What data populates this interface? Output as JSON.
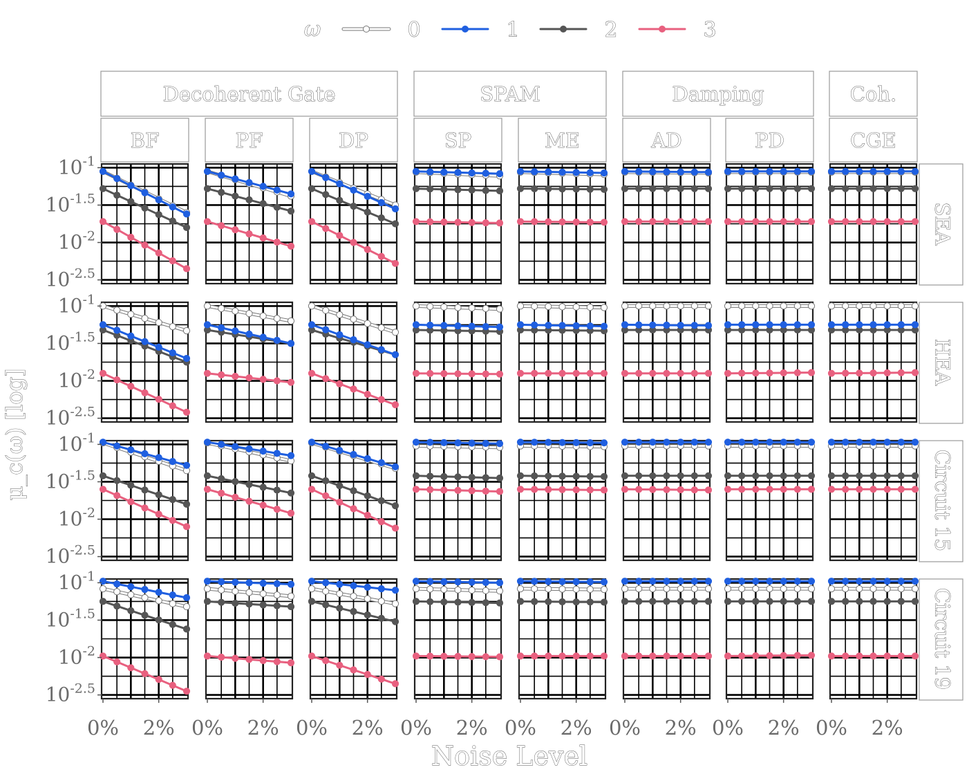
{
  "chart_data": {
    "type": "line",
    "xlabel": "Noise Level",
    "ylabel": "μ_c(ω) [log]",
    "legend": {
      "title": "ω",
      "position": "top",
      "entries": [
        "0",
        "1",
        "2",
        "3"
      ]
    },
    "colors": {
      "0": "#ffffff",
      "1": "#1f5fe0",
      "2": "#555555",
      "3": "#e8607f",
      "stroke0": "#777777"
    },
    "x": [
      0,
      0.5,
      1,
      1.5,
      2,
      2.5,
      3
    ],
    "x_unit": "%",
    "x_ticks": [
      "0%",
      "2%"
    ],
    "x_tick_values": [
      0,
      2
    ],
    "xlim": [
      0,
      3
    ],
    "y_ticks": [
      "10^-1",
      "10^-1.5",
      "10^-2",
      "10^-2.5"
    ],
    "y_tick_values": [
      -1,
      -1.5,
      -2,
      -2.5
    ],
    "ylim": [
      -2.55,
      -0.95
    ],
    "y_scale": "log10",
    "grid": true,
    "column_groups": [
      {
        "label": "Decoherent Gate",
        "columns": [
          "BF",
          "PF",
          "DP"
        ]
      },
      {
        "label": "SPAM",
        "columns": [
          "SP",
          "ME"
        ]
      },
      {
        "label": "Damping",
        "columns": [
          "AD",
          "PD"
        ]
      },
      {
        "label": "Coh.",
        "columns": [
          "CGE"
        ]
      }
    ],
    "columns": [
      "BF",
      "PF",
      "DP",
      "SP",
      "ME",
      "AD",
      "PD",
      "CGE"
    ],
    "rows": [
      "SEA",
      "HEA",
      "Circuit 15",
      "Circuit 19"
    ],
    "panels": [
      {
        "row": "SEA",
        "col": "BF",
        "series": [
          {
            "name": "0",
            "start": -1.05,
            "end": -1.6
          },
          {
            "name": "1",
            "start": -1.05,
            "end": -1.62
          },
          {
            "name": "2",
            "start": -1.28,
            "end": -1.8
          },
          {
            "name": "3",
            "start": -1.72,
            "end": -2.35
          }
        ]
      },
      {
        "row": "SEA",
        "col": "PF",
        "series": [
          {
            "name": "0",
            "start": -1.05,
            "end": -1.38
          },
          {
            "name": "1",
            "start": -1.05,
            "end": -1.35
          },
          {
            "name": "2",
            "start": -1.28,
            "end": -1.58
          },
          {
            "name": "3",
            "start": -1.72,
            "end": -2.05
          }
        ]
      },
      {
        "row": "SEA",
        "col": "DP",
        "series": [
          {
            "name": "0",
            "start": -1.05,
            "end": -1.5
          },
          {
            "name": "1",
            "start": -1.05,
            "end": -1.55
          },
          {
            "name": "2",
            "start": -1.28,
            "end": -1.75
          },
          {
            "name": "3",
            "start": -1.72,
            "end": -2.28
          }
        ]
      },
      {
        "row": "SEA",
        "col": "SP",
        "series": [
          {
            "name": "0",
            "start": -1.06,
            "end": -1.11
          },
          {
            "name": "1",
            "start": -1.05,
            "end": -1.08
          },
          {
            "name": "2",
            "start": -1.28,
            "end": -1.31
          },
          {
            "name": "3",
            "start": -1.72,
            "end": -1.74
          }
        ]
      },
      {
        "row": "SEA",
        "col": "ME",
        "series": [
          {
            "name": "0",
            "start": -1.06,
            "end": -1.09
          },
          {
            "name": "1",
            "start": -1.05,
            "end": -1.07
          },
          {
            "name": "2",
            "start": -1.28,
            "end": -1.29
          },
          {
            "name": "3",
            "start": -1.72,
            "end": -1.73
          }
        ]
      },
      {
        "row": "SEA",
        "col": "AD",
        "series": [
          {
            "name": "0",
            "start": -1.06,
            "end": -1.07
          },
          {
            "name": "1",
            "start": -1.05,
            "end": -1.06
          },
          {
            "name": "2",
            "start": -1.28,
            "end": -1.28
          },
          {
            "name": "3",
            "start": -1.72,
            "end": -1.72
          }
        ]
      },
      {
        "row": "SEA",
        "col": "PD",
        "series": [
          {
            "name": "0",
            "start": -1.06,
            "end": -1.06
          },
          {
            "name": "1",
            "start": -1.05,
            "end": -1.05
          },
          {
            "name": "2",
            "start": -1.28,
            "end": -1.28
          },
          {
            "name": "3",
            "start": -1.72,
            "end": -1.72
          }
        ]
      },
      {
        "row": "SEA",
        "col": "CGE",
        "series": [
          {
            "name": "0",
            "start": -1.06,
            "end": -1.06
          },
          {
            "name": "1",
            "start": -1.05,
            "end": -1.05
          },
          {
            "name": "2",
            "start": -1.28,
            "end": -1.28
          },
          {
            "name": "3",
            "start": -1.72,
            "end": -1.72
          }
        ]
      },
      {
        "row": "HEA",
        "col": "BF",
        "series": [
          {
            "name": "0",
            "start": -1.0,
            "end": -1.33
          },
          {
            "name": "1",
            "start": -1.25,
            "end": -1.7
          },
          {
            "name": "2",
            "start": -1.32,
            "end": -1.75
          },
          {
            "name": "3",
            "start": -1.9,
            "end": -2.42
          }
        ]
      },
      {
        "row": "HEA",
        "col": "PF",
        "series": [
          {
            "name": "0",
            "start": -1.0,
            "end": -1.2
          },
          {
            "name": "1",
            "start": -1.25,
            "end": -1.5
          },
          {
            "name": "2",
            "start": -1.32,
            "end": -1.5
          },
          {
            "name": "3",
            "start": -1.9,
            "end": -2.02
          }
        ]
      },
      {
        "row": "HEA",
        "col": "DP",
        "series": [
          {
            "name": "0",
            "start": -1.0,
            "end": -1.35
          },
          {
            "name": "1",
            "start": -1.25,
            "end": -1.65
          },
          {
            "name": "2",
            "start": -1.32,
            "end": -1.65
          },
          {
            "name": "3",
            "start": -1.9,
            "end": -2.32
          }
        ]
      },
      {
        "row": "HEA",
        "col": "SP",
        "series": [
          {
            "name": "0",
            "start": -1.0,
            "end": -1.04
          },
          {
            "name": "1",
            "start": -1.25,
            "end": -1.28
          },
          {
            "name": "2",
            "start": -1.32,
            "end": -1.34
          },
          {
            "name": "3",
            "start": -1.9,
            "end": -1.91
          }
        ]
      },
      {
        "row": "HEA",
        "col": "ME",
        "series": [
          {
            "name": "0",
            "start": -1.0,
            "end": -1.02
          },
          {
            "name": "1",
            "start": -1.25,
            "end": -1.27
          },
          {
            "name": "2",
            "start": -1.32,
            "end": -1.33
          },
          {
            "name": "3",
            "start": -1.9,
            "end": -1.9
          }
        ]
      },
      {
        "row": "HEA",
        "col": "AD",
        "series": [
          {
            "name": "0",
            "start": -1.0,
            "end": -1.0
          },
          {
            "name": "1",
            "start": -1.25,
            "end": -1.26
          },
          {
            "name": "2",
            "start": -1.32,
            "end": -1.32
          },
          {
            "name": "3",
            "start": -1.9,
            "end": -1.9
          }
        ]
      },
      {
        "row": "HEA",
        "col": "PD",
        "series": [
          {
            "name": "0",
            "start": -1.0,
            "end": -1.0
          },
          {
            "name": "1",
            "start": -1.25,
            "end": -1.25
          },
          {
            "name": "2",
            "start": -1.32,
            "end": -1.32
          },
          {
            "name": "3",
            "start": -1.9,
            "end": -1.89
          }
        ]
      },
      {
        "row": "HEA",
        "col": "CGE",
        "series": [
          {
            "name": "0",
            "start": -1.0,
            "end": -1.0
          },
          {
            "name": "1",
            "start": -1.25,
            "end": -1.25
          },
          {
            "name": "2",
            "start": -1.32,
            "end": -1.32
          },
          {
            "name": "3",
            "start": -1.9,
            "end": -1.89
          }
        ]
      },
      {
        "row": "Circuit 15",
        "col": "BF",
        "series": [
          {
            "name": "0",
            "start": -0.98,
            "end": -1.35
          },
          {
            "name": "1",
            "start": -0.97,
            "end": -1.28
          },
          {
            "name": "2",
            "start": -1.42,
            "end": -1.8
          },
          {
            "name": "3",
            "start": -1.6,
            "end": -2.1
          }
        ]
      },
      {
        "row": "Circuit 15",
        "col": "PF",
        "series": [
          {
            "name": "0",
            "start": -0.98,
            "end": -1.22
          },
          {
            "name": "1",
            "start": -0.97,
            "end": -1.15
          },
          {
            "name": "2",
            "start": -1.42,
            "end": -1.65
          },
          {
            "name": "3",
            "start": -1.6,
            "end": -1.92
          }
        ]
      },
      {
        "row": "Circuit 15",
        "col": "DP",
        "series": [
          {
            "name": "0",
            "start": -0.98,
            "end": -1.32
          },
          {
            "name": "1",
            "start": -0.97,
            "end": -1.3
          },
          {
            "name": "2",
            "start": -1.42,
            "end": -1.82
          },
          {
            "name": "3",
            "start": -1.6,
            "end": -2.12
          }
        ]
      },
      {
        "row": "Circuit 15",
        "col": "SP",
        "series": [
          {
            "name": "0",
            "start": -1.02,
            "end": -1.04
          },
          {
            "name": "1",
            "start": -0.97,
            "end": -0.99
          },
          {
            "name": "2",
            "start": -1.42,
            "end": -1.45
          },
          {
            "name": "3",
            "start": -1.6,
            "end": -1.63
          }
        ]
      },
      {
        "row": "Circuit 15",
        "col": "ME",
        "series": [
          {
            "name": "0",
            "start": -1.02,
            "end": -1.03
          },
          {
            "name": "1",
            "start": -0.97,
            "end": -0.98
          },
          {
            "name": "2",
            "start": -1.42,
            "end": -1.43
          },
          {
            "name": "3",
            "start": -1.6,
            "end": -1.61
          }
        ]
      },
      {
        "row": "Circuit 15",
        "col": "AD",
        "series": [
          {
            "name": "0",
            "start": -1.02,
            "end": -1.02
          },
          {
            "name": "1",
            "start": -0.97,
            "end": -0.97
          },
          {
            "name": "2",
            "start": -1.42,
            "end": -1.42
          },
          {
            "name": "3",
            "start": -1.6,
            "end": -1.61
          }
        ]
      },
      {
        "row": "Circuit 15",
        "col": "PD",
        "series": [
          {
            "name": "0",
            "start": -1.02,
            "end": -1.02
          },
          {
            "name": "1",
            "start": -0.97,
            "end": -0.97
          },
          {
            "name": "2",
            "start": -1.42,
            "end": -1.42
          },
          {
            "name": "3",
            "start": -1.6,
            "end": -1.6
          }
        ]
      },
      {
        "row": "Circuit 15",
        "col": "CGE",
        "series": [
          {
            "name": "0",
            "start": -1.02,
            "end": -1.02
          },
          {
            "name": "1",
            "start": -0.97,
            "end": -0.97
          },
          {
            "name": "2",
            "start": -1.42,
            "end": -1.42
          },
          {
            "name": "3",
            "start": -1.6,
            "end": -1.6
          }
        ]
      },
      {
        "row": "Circuit 19",
        "col": "BF",
        "series": [
          {
            "name": "0",
            "start": -1.08,
            "end": -1.32
          },
          {
            "name": "1",
            "start": -0.98,
            "end": -1.2
          },
          {
            "name": "2",
            "start": -1.25,
            "end": -1.62
          },
          {
            "name": "3",
            "start": -1.98,
            "end": -2.45
          }
        ]
      },
      {
        "row": "Circuit 19",
        "col": "PF",
        "series": [
          {
            "name": "0",
            "start": -1.08,
            "end": -1.18
          },
          {
            "name": "1",
            "start": -0.98,
            "end": -1.02
          },
          {
            "name": "2",
            "start": -1.25,
            "end": -1.32
          },
          {
            "name": "3",
            "start": -1.98,
            "end": -2.07
          }
        ]
      },
      {
        "row": "Circuit 19",
        "col": "DP",
        "series": [
          {
            "name": "0",
            "start": -1.08,
            "end": -1.28
          },
          {
            "name": "1",
            "start": -0.98,
            "end": -1.1
          },
          {
            "name": "2",
            "start": -1.25,
            "end": -1.52
          },
          {
            "name": "3",
            "start": -1.98,
            "end": -2.35
          }
        ]
      },
      {
        "row": "Circuit 19",
        "col": "SP",
        "series": [
          {
            "name": "0",
            "start": -1.08,
            "end": -1.11
          },
          {
            "name": "1",
            "start": -0.98,
            "end": -1.0
          },
          {
            "name": "2",
            "start": -1.25,
            "end": -1.27
          },
          {
            "name": "3",
            "start": -1.98,
            "end": -1.99
          }
        ]
      },
      {
        "row": "Circuit 19",
        "col": "ME",
        "series": [
          {
            "name": "0",
            "start": -1.08,
            "end": -1.09
          },
          {
            "name": "1",
            "start": -0.98,
            "end": -0.99
          },
          {
            "name": "2",
            "start": -1.25,
            "end": -1.26
          },
          {
            "name": "3",
            "start": -1.98,
            "end": -1.98
          }
        ]
      },
      {
        "row": "Circuit 19",
        "col": "AD",
        "series": [
          {
            "name": "0",
            "start": -1.08,
            "end": -1.08
          },
          {
            "name": "1",
            "start": -0.98,
            "end": -0.98
          },
          {
            "name": "2",
            "start": -1.25,
            "end": -1.25
          },
          {
            "name": "3",
            "start": -1.98,
            "end": -1.98
          }
        ]
      },
      {
        "row": "Circuit 19",
        "col": "PD",
        "series": [
          {
            "name": "0",
            "start": -1.08,
            "end": -1.08
          },
          {
            "name": "1",
            "start": -0.98,
            "end": -0.98
          },
          {
            "name": "2",
            "start": -1.25,
            "end": -1.25
          },
          {
            "name": "3",
            "start": -1.98,
            "end": -1.97
          }
        ]
      },
      {
        "row": "Circuit 19",
        "col": "CGE",
        "series": [
          {
            "name": "0",
            "start": -1.08,
            "end": -1.08
          },
          {
            "name": "1",
            "start": -0.98,
            "end": -0.98
          },
          {
            "name": "2",
            "start": -1.25,
            "end": -1.25
          },
          {
            "name": "3",
            "start": -1.98,
            "end": -1.98
          }
        ]
      }
    ]
  }
}
